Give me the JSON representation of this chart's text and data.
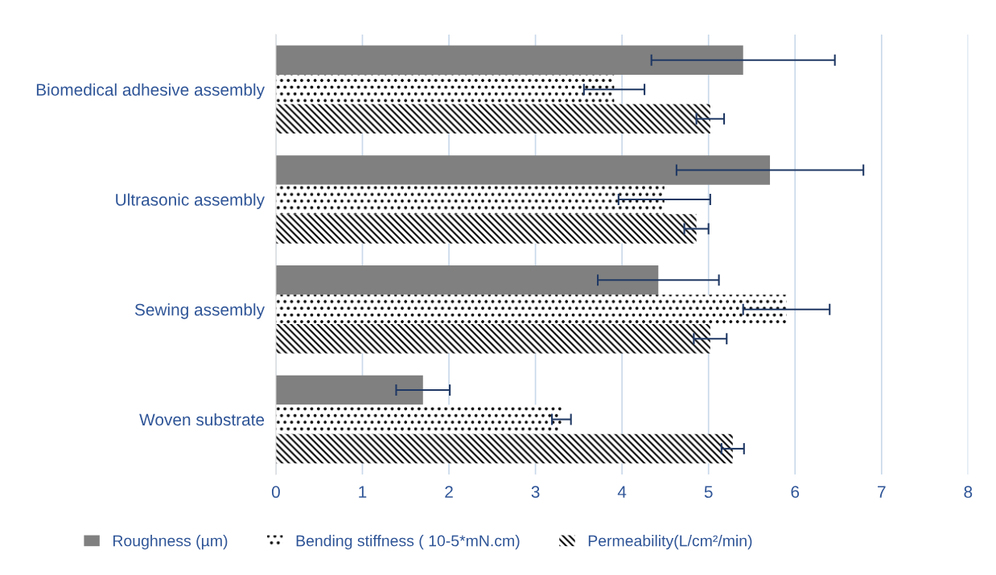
{
  "chart_data": {
    "type": "bar",
    "orientation": "horizontal",
    "categories": [
      "Biomedical adhesive assembly",
      "Ultrasonic assembly",
      "Sewing assembly",
      "Woven substrate"
    ],
    "series": [
      {
        "name": "Roughness (µm)",
        "color": "#808080",
        "values": [
          5.4,
          5.71,
          4.42,
          1.7
        ],
        "errors": [
          1.06,
          1.08,
          0.7,
          0.31
        ]
      },
      {
        "name": "Bending stiffness ( 10-5*mN.cm)",
        "color": "#000000",
        "values": [
          3.91,
          4.49,
          5.9,
          3.3
        ],
        "errors": [
          0.35,
          0.53,
          0.5,
          0.11
        ]
      },
      {
        "name": "Permeability(L/cm²/min)",
        "color": "#000000",
        "values": [
          5.02,
          4.86,
          5.02,
          5.28
        ],
        "errors": [
          0.16,
          0.14,
          0.19,
          0.13
        ]
      }
    ],
    "xlim": [
      0,
      8
    ],
    "xticks": [
      0,
      1,
      2,
      3,
      4,
      5,
      6,
      7,
      8
    ],
    "grid": "x",
    "legend": "bottom"
  }
}
